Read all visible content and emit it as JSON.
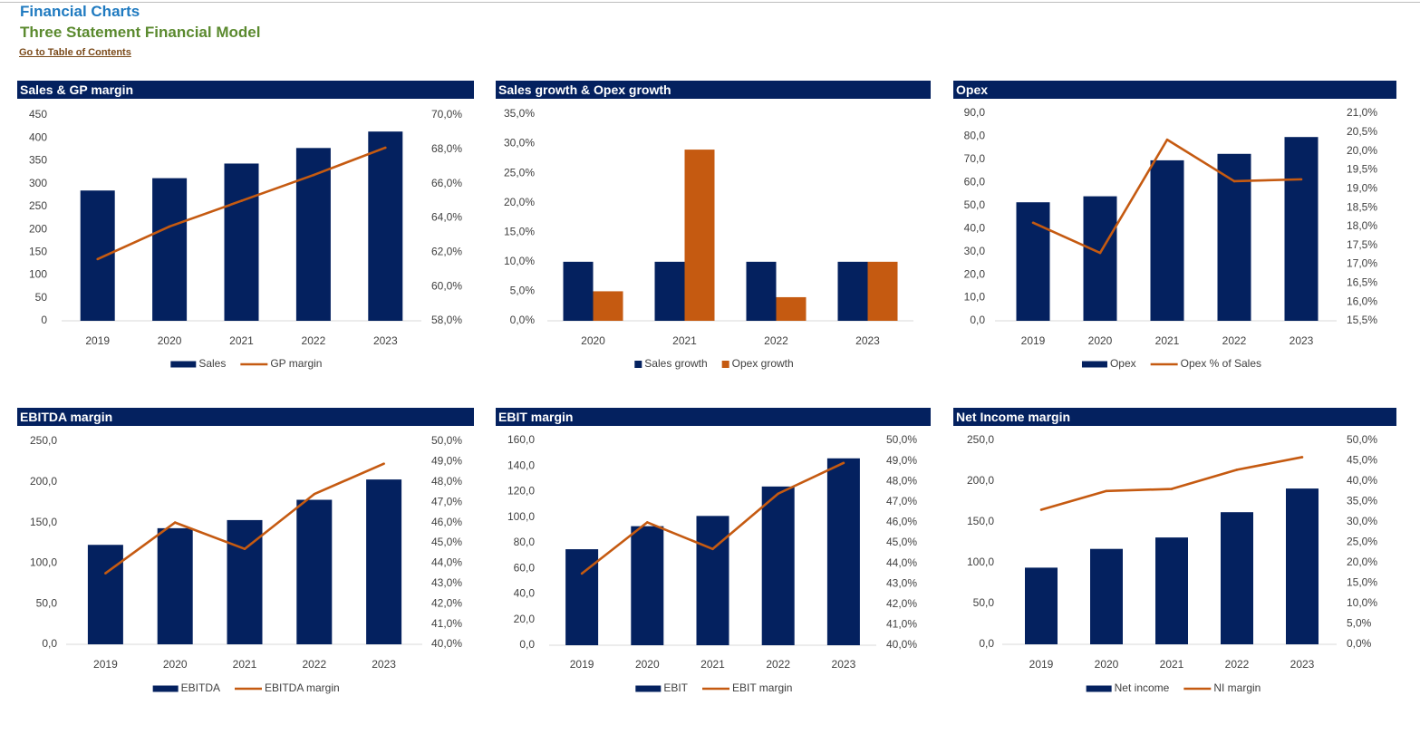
{
  "header": {
    "title": "Financial Charts",
    "subtitle": "Three Statement Financial Model",
    "toc_link": "Go to Table of Contents"
  },
  "colors": {
    "bar_primary": "#04215f",
    "bar_secondary": "#c55a11",
    "line": "#c55a11",
    "header_bg": "#04215f"
  },
  "charts": [
    {
      "title": "Sales & GP margin",
      "chart_data": {
        "type": "bar+line",
        "categories": [
          "2019",
          "2020",
          "2021",
          "2022",
          "2023"
        ],
        "series": [
          {
            "name": "Sales",
            "kind": "bar",
            "axis": "left",
            "values": [
              285,
              312,
              344,
              378,
              414
            ]
          },
          {
            "name": "GP margin",
            "kind": "line",
            "axis": "right",
            "values": [
              0.616,
              0.635,
              0.65,
              0.665,
              0.681
            ]
          }
        ],
        "y_left": {
          "min": 0,
          "max": 450,
          "step": 50,
          "format": "int"
        },
        "y_right": {
          "min": 0.58,
          "max": 0.7,
          "step": 0.02,
          "format": "pct1"
        },
        "legend_position": "bottom"
      }
    },
    {
      "title": "Sales growth & Opex growth",
      "chart_data": {
        "type": "bar",
        "categories": [
          "2020",
          "2021",
          "2022",
          "2023"
        ],
        "series": [
          {
            "name": "Sales growth",
            "kind": "bar",
            "axis": "left",
            "values": [
              0.1,
              0.1,
              0.1,
              0.1
            ]
          },
          {
            "name": "Opex growth",
            "kind": "bar",
            "axis": "left",
            "values": [
              0.05,
              0.29,
              0.04,
              0.1
            ]
          }
        ],
        "y_left": {
          "min": 0,
          "max": 0.35,
          "step": 0.05,
          "format": "pct1"
        },
        "legend_position": "bottom"
      }
    },
    {
      "title": "Opex",
      "chart_data": {
        "type": "bar+line",
        "categories": [
          "2019",
          "2020",
          "2021",
          "2022",
          "2023"
        ],
        "series": [
          {
            "name": "Opex",
            "kind": "bar",
            "axis": "left",
            "values": [
              51.4,
              54.0,
              69.6,
              72.4,
              79.7
            ]
          },
          {
            "name": "Opex % of Sales",
            "kind": "line",
            "axis": "right",
            "values": [
              0.181,
              0.173,
              0.203,
              0.192,
              0.1925
            ]
          }
        ],
        "y_left": {
          "min": 0,
          "max": 90,
          "step": 10,
          "format": "dec1"
        },
        "y_right": {
          "min": 0.155,
          "max": 0.21,
          "step": 0.005,
          "format": "pct1"
        },
        "legend_position": "bottom"
      }
    },
    {
      "title": "EBITDA margin",
      "chart_data": {
        "type": "bar+line",
        "categories": [
          "2019",
          "2020",
          "2021",
          "2022",
          "2023"
        ],
        "series": [
          {
            "name": "EBITDA",
            "kind": "bar",
            "axis": "left",
            "values": [
              122.5,
              143,
              153,
              178,
              203
            ]
          },
          {
            "name": "EBITDA margin",
            "kind": "line",
            "axis": "right",
            "values": [
              0.435,
              0.46,
              0.447,
              0.474,
              0.489
            ]
          }
        ],
        "y_left": {
          "min": 0,
          "max": 250,
          "step": 50,
          "format": "dec1"
        },
        "y_right": {
          "min": 0.4,
          "max": 0.5,
          "step": 0.01,
          "format": "pct1"
        },
        "legend_position": "bottom"
      }
    },
    {
      "title": "EBIT margin",
      "chart_data": {
        "type": "bar+line",
        "categories": [
          "2019",
          "2020",
          "2021",
          "2022",
          "2023"
        ],
        "series": [
          {
            "name": "EBIT",
            "kind": "bar",
            "axis": "left",
            "values": [
              75,
              93,
              101,
              124,
              146
            ]
          },
          {
            "name": "EBIT margin",
            "kind": "line",
            "axis": "right",
            "values": [
              0.435,
              0.46,
              0.447,
              0.474,
              0.489
            ]
          }
        ],
        "y_left": {
          "min": 0,
          "max": 160,
          "step": 20,
          "format": "dec1"
        },
        "y_right": {
          "min": 0.4,
          "max": 0.5,
          "step": 0.01,
          "format": "pct1"
        },
        "legend_position": "bottom"
      }
    },
    {
      "title": "Net Income margin",
      "chart_data": {
        "type": "bar+line",
        "categories": [
          "2019",
          "2020",
          "2021",
          "2022",
          "2023"
        ],
        "series": [
          {
            "name": "Net income",
            "kind": "bar",
            "axis": "left",
            "values": [
              94,
              117,
              131,
              162,
              191
            ]
          },
          {
            "name": "NI margin",
            "kind": "line",
            "axis": "right",
            "values": [
              0.33,
              0.376,
              0.381,
              0.428,
              0.459
            ]
          }
        ],
        "y_left": {
          "min": 0,
          "max": 250,
          "step": 50,
          "format": "dec1"
        },
        "y_right": {
          "min": 0,
          "max": 0.5,
          "step": 0.05,
          "format": "pct1"
        },
        "legend_position": "bottom"
      }
    }
  ]
}
